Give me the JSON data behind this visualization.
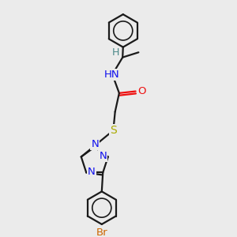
{
  "background_color": "#ebebeb",
  "bond_color": "#1a1a1a",
  "atom_colors": {
    "N": "#1010ee",
    "O": "#ee1010",
    "S": "#aaaa00",
    "Br": "#cc6600",
    "H": "#4a8888",
    "C": "#1a1a1a"
  },
  "figsize": [
    3.0,
    3.0
  ],
  "dpi": 100,
  "xlim": [
    0,
    10
  ],
  "ylim": [
    0,
    10
  ],
  "lw": 1.6,
  "fs": 9.5
}
